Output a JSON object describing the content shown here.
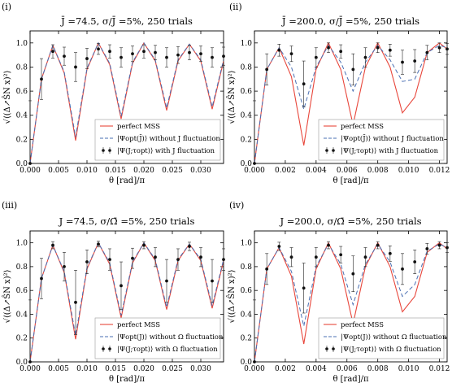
{
  "panels": [
    {
      "label": "(i)",
      "title": "J̄ =74.5, σ/J̄ =5%, 250 trials"
    },
    {
      "label": "(ii)",
      "title": "J̄ =200.0, σ/J̄ =5%, 250 trials"
    },
    {
      "label": "(iii)",
      "title": "J =74.5, σ/Ω̄ =5%, 250 trials"
    },
    {
      "label": "(iv)",
      "title": "J =200.0, σ/Ω̄ =5%, 250 trials"
    }
  ],
  "axes": {
    "xlabel": "θ [rad]/π",
    "ylabel": "√⟨(Δ↗ŜN x)²⟩",
    "yticks": [
      "0.0",
      "0.2",
      "0.4",
      "0.6",
      "0.8",
      "1.0"
    ]
  },
  "legend_sets": [
    [
      "perfect MSS",
      "|Ψopt(J̄)⟩ without J fluctuation",
      "|Ψ(J;τopt)⟩ with J fluctuation"
    ],
    [
      "perfect MSS",
      "|Ψopt(J)⟩ without Ω fluctuation",
      "|Ψ(J;τopt)⟩ with Ω fluctuation"
    ]
  ],
  "colors": {
    "perfect": "#e8463b",
    "without": "#4a6fb3",
    "with": "#111111"
  },
  "chart_data": [
    {
      "type": "line",
      "title": "J̄ =74.5, σ/J̄ =5%, 250 trials",
      "xlabel": "θ [rad]/π",
      "ylim": [
        0,
        1.1
      ],
      "xlim": [
        0,
        0.034
      ],
      "xticks": [
        "0.000",
        "0.005",
        "0.010",
        "0.015",
        "0.020",
        "0.025",
        "0.030"
      ],
      "x": [
        0,
        0.002,
        0.004,
        0.006,
        0.008,
        0.01,
        0.012,
        0.014,
        0.016,
        0.018,
        0.02,
        0.022,
        0.024,
        0.026,
        0.028,
        0.03,
        0.032,
        0.034
      ],
      "series": [
        {
          "name": "perfect MSS",
          "values": [
            0,
            0.7,
            0.98,
            0.75,
            0.19,
            0.78,
            1.0,
            0.82,
            0.37,
            0.83,
            1.0,
            0.85,
            0.44,
            0.85,
            0.99,
            0.85,
            0.45,
            0.85
          ]
        },
        {
          "name": "|Ψopt(J̄)⟩ without J fluctuation",
          "values": [
            0,
            0.7,
            0.98,
            0.76,
            0.22,
            0.79,
            1.0,
            0.83,
            0.39,
            0.84,
            1.0,
            0.86,
            0.46,
            0.86,
            0.99,
            0.86,
            0.47,
            0.86
          ]
        },
        {
          "name": "|Ψ(J;τopt)⟩ with J fluctuation",
          "values": [
            0,
            0.7,
            0.93,
            0.89,
            0.8,
            0.87,
            0.95,
            0.93,
            0.88,
            0.91,
            0.93,
            0.92,
            0.88,
            0.9,
            0.92,
            0.91,
            0.88,
            0.89
          ]
        }
      ]
    },
    {
      "type": "line",
      "title": "J̄ =200.0, σ/J̄ =5%, 250 trials",
      "xlabel": "θ [rad]/π",
      "ylim": [
        0,
        1.1
      ],
      "xlim": [
        0,
        0.0125
      ],
      "xticks": [
        "0.000",
        "0.002",
        "0.004",
        "0.006",
        "0.008",
        "0.010",
        "0.012"
      ],
      "x": [
        0,
        0.0008,
        0.0016,
        0.0024,
        0.0032,
        0.004,
        0.0048,
        0.0056,
        0.0064,
        0.0072,
        0.008,
        0.0088,
        0.0096,
        0.0104,
        0.0112,
        0.012,
        0.0125
      ],
      "series": [
        {
          "name": "perfect MSS",
          "values": [
            0,
            0.78,
            0.96,
            0.72,
            0.15,
            0.78,
            1.0,
            0.78,
            0.32,
            0.8,
            1.0,
            0.8,
            0.42,
            0.55,
            0.92,
            1.0,
            0.95
          ]
        },
        {
          "name": "|Ψopt(J̄)⟩ without J fluctuation",
          "values": [
            0,
            0.78,
            0.96,
            0.8,
            0.45,
            0.8,
            0.98,
            0.84,
            0.6,
            0.84,
            0.98,
            0.86,
            0.68,
            0.7,
            0.92,
            0.98,
            0.96
          ]
        },
        {
          "name": "|Ψ(J;τopt)⟩ with J fluctuation",
          "values": [
            0,
            0.78,
            0.94,
            0.91,
            0.66,
            0.88,
            0.96,
            0.93,
            0.78,
            0.88,
            0.96,
            0.94,
            0.84,
            0.85,
            0.92,
            0.96,
            0.95
          ]
        }
      ]
    },
    {
      "type": "line",
      "title": "J =74.5, σ/Ω̄ =5%, 250 trials",
      "xlabel": "θ [rad]/π",
      "ylim": [
        0,
        1.1
      ],
      "xlim": [
        0,
        0.034
      ],
      "xticks": [
        "0.000",
        "0.005",
        "0.010",
        "0.015",
        "0.020",
        "0.025",
        "0.030"
      ],
      "x": [
        0,
        0.002,
        0.004,
        0.006,
        0.008,
        0.01,
        0.012,
        0.014,
        0.016,
        0.018,
        0.02,
        0.022,
        0.024,
        0.026,
        0.028,
        0.03,
        0.032,
        0.034
      ],
      "series": [
        {
          "name": "perfect MSS",
          "values": [
            0,
            0.7,
            0.98,
            0.75,
            0.19,
            0.78,
            1.0,
            0.82,
            0.37,
            0.83,
            1.0,
            0.85,
            0.44,
            0.85,
            0.99,
            0.85,
            0.45,
            0.85
          ]
        },
        {
          "name": "|Ψopt(J)⟩ without Ω fluctuation",
          "values": [
            0,
            0.7,
            0.98,
            0.76,
            0.22,
            0.79,
            1.0,
            0.83,
            0.39,
            0.84,
            1.0,
            0.86,
            0.46,
            0.86,
            0.99,
            0.86,
            0.47,
            0.86
          ]
        },
        {
          "name": "|Ψ(J;τopt)⟩ with Ω fluctuation",
          "values": [
            0,
            0.7,
            0.98,
            0.8,
            0.5,
            0.84,
            0.99,
            0.86,
            0.64,
            0.87,
            0.98,
            0.88,
            0.68,
            0.86,
            0.97,
            0.88,
            0.68,
            0.86
          ]
        }
      ]
    },
    {
      "type": "line",
      "title": "J =200.0, σ/Ω̄ =5%, 250 trials",
      "xlabel": "θ [rad]/π",
      "ylim": [
        0,
        1.1
      ],
      "xlim": [
        0,
        0.0125
      ],
      "xticks": [
        "0.000",
        "0.002",
        "0.004",
        "0.006",
        "0.008",
        "0.010",
        "0.012"
      ],
      "x": [
        0,
        0.0008,
        0.0016,
        0.0024,
        0.0032,
        0.004,
        0.0048,
        0.0056,
        0.0064,
        0.0072,
        0.008,
        0.0088,
        0.0096,
        0.0104,
        0.0112,
        0.012,
        0.0125
      ],
      "series": [
        {
          "name": "perfect MSS",
          "values": [
            0,
            0.78,
            0.96,
            0.72,
            0.15,
            0.78,
            1.0,
            0.78,
            0.32,
            0.8,
            1.0,
            0.8,
            0.42,
            0.55,
            0.92,
            1.0,
            0.95
          ]
        },
        {
          "name": "|Ψopt(J)⟩ without Ω fluctuation",
          "values": [
            0,
            0.78,
            0.96,
            0.76,
            0.3,
            0.8,
            0.99,
            0.82,
            0.48,
            0.82,
            0.99,
            0.84,
            0.55,
            0.65,
            0.93,
            0.99,
            0.96
          ]
        },
        {
          "name": "|Ψ(J;τopt)⟩ with Ω fluctuation",
          "values": [
            0,
            0.78,
            0.97,
            0.88,
            0.62,
            0.88,
            0.98,
            0.9,
            0.74,
            0.88,
            0.98,
            0.91,
            0.78,
            0.84,
            0.95,
            0.98,
            0.96
          ]
        }
      ]
    }
  ]
}
